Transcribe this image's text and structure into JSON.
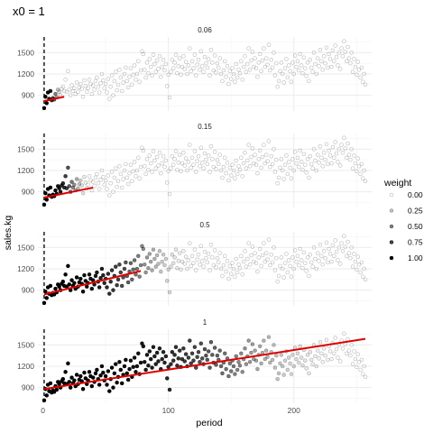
{
  "chart_data": {
    "type": "scatter",
    "title": "x0 =  1",
    "xlabel": "period",
    "ylabel": "sales.kg",
    "x_ticks": [
      0,
      100,
      200
    ],
    "y_ticks": [
      900,
      1200,
      1500
    ],
    "xlim": [
      -4,
      262
    ],
    "ylim": [
      680,
      1720
    ],
    "vline_x": 1,
    "grid": true,
    "legend": {
      "title": "weight",
      "position": "right",
      "entries": [
        {
          "label": "0.00",
          "value": 0.0
        },
        {
          "label": "0.25",
          "value": 0.25
        },
        {
          "label": "0.50",
          "value": 0.5
        },
        {
          "label": "0.75",
          "value": 0.75
        },
        {
          "label": "1.00",
          "value": 1.0
        }
      ]
    },
    "colors": {
      "points": "#000000",
      "fit_line": "#dd0000",
      "vline": "#000000"
    },
    "panels": [
      {
        "label": "0.06",
        "span": 0.06,
        "fit": {
          "x": [
            1,
            17
          ],
          "y": [
            820,
            880
          ]
        }
      },
      {
        "label": "0.15",
        "span": 0.15,
        "fit": {
          "x": [
            1,
            40
          ],
          "y": [
            820,
            960
          ]
        }
      },
      {
        "label": "0.5",
        "span": 0.5,
        "fit": {
          "x": [
            1,
            78
          ],
          "y": [
            840,
            1170
          ]
        }
      },
      {
        "label": "1",
        "span": 1.0,
        "fit": {
          "x": [
            1,
            257
          ],
          "y": [
            880,
            1585
          ]
        }
      }
    ],
    "series": [
      {
        "name": "sales.kg",
        "x": [
          1,
          2,
          3,
          4,
          5,
          6,
          7,
          8,
          9,
          10,
          11,
          12,
          13,
          14,
          15,
          16,
          17,
          18,
          19,
          20,
          21,
          22,
          23,
          24,
          25,
          26,
          27,
          28,
          29,
          30,
          31,
          32,
          33,
          34,
          35,
          36,
          37,
          38,
          39,
          40,
          41,
          42,
          43,
          44,
          45,
          46,
          47,
          48,
          49,
          50,
          51,
          52,
          53,
          54,
          55,
          56,
          57,
          58,
          59,
          60,
          61,
          62,
          63,
          64,
          65,
          66,
          67,
          68,
          69,
          70,
          71,
          72,
          73,
          74,
          75,
          76,
          77,
          78,
          79,
          80,
          81,
          82,
          83,
          84,
          85,
          86,
          87,
          88,
          89,
          90,
          91,
          92,
          93,
          94,
          95,
          96,
          97,
          98,
          99,
          100,
          101,
          102,
          103,
          104,
          105,
          106,
          107,
          108,
          109,
          110,
          111,
          112,
          113,
          114,
          115,
          116,
          117,
          118,
          119,
          120,
          121,
          122,
          123,
          124,
          125,
          126,
          127,
          128,
          129,
          130,
          131,
          132,
          133,
          134,
          135,
          136,
          137,
          138,
          139,
          140,
          141,
          142,
          143,
          144,
          145,
          146,
          147,
          148,
          149,
          150,
          151,
          152,
          153,
          154,
          155,
          156,
          157,
          158,
          159,
          160,
          161,
          162,
          163,
          164,
          165,
          166,
          167,
          168,
          169,
          170,
          171,
          172,
          173,
          174,
          175,
          176,
          177,
          178,
          179,
          180,
          181,
          182,
          183,
          184,
          185,
          186,
          187,
          188,
          189,
          190,
          191,
          192,
          193,
          194,
          195,
          196,
          197,
          198,
          199,
          200,
          201,
          202,
          203,
          204,
          205,
          206,
          207,
          208,
          209,
          210,
          211,
          212,
          213,
          214,
          215,
          216,
          217,
          218,
          219,
          220,
          221,
          222,
          223,
          224,
          225,
          226,
          227,
          228,
          229,
          230,
          231,
          232,
          233,
          234,
          235,
          236,
          237,
          238,
          239,
          240,
          241,
          242,
          243,
          244,
          245,
          246,
          247,
          248,
          249,
          250,
          251,
          252,
          253,
          254,
          255,
          256,
          257
        ],
        "y": [
          720,
          880,
          790,
          940,
          850,
          960,
          830,
          860,
          840,
          920,
          870,
          980,
          950,
          900,
          990,
          1020,
          960,
          1120,
          950,
          1240,
          980,
          900,
          1040,
          960,
          1000,
          920,
          1080,
          950,
          1010,
          1060,
          990,
          880,
          1110,
          1030,
          950,
          1000,
          1120,
          1060,
          920,
          1040,
          980,
          1100,
          1150,
          1020,
          940,
          1070,
          1200,
          1110,
          1000,
          1060,
          940,
          1130,
          850,
          1020,
          1180,
          900,
          1100,
          1230,
          970,
          1050,
          1260,
          1150,
          960,
          1080,
          1200,
          1290,
          1100,
          1010,
          1160,
          1280,
          1050,
          1190,
          1320,
          1120,
          1200,
          1380,
          1090,
          1250,
          1520,
          1480,
          1260,
          1150,
          1360,
          1210,
          1410,
          1300,
          1180,
          1470,
          1340,
          1230,
          1390,
          1270,
          1450,
          1160,
          1300,
          1400,
          1250,
          1340,
          1030,
          1190,
          870,
          1230,
          1400,
          1280,
          1360,
          1470,
          1210,
          1310,
          1420,
          1190,
          1300,
          1450,
          1270,
          1370,
          1200,
          1320,
          1560,
          1240,
          1380,
          1280,
          1470,
          1180,
          1330,
          1400,
          1260,
          1520,
          1310,
          1230,
          1440,
          1350,
          1290,
          1410,
          1180,
          1540,
          1360,
          1250,
          1460,
          1220,
          1350,
          1290,
          1420,
          1200,
          1100,
          1250,
          1380,
          1160,
          1310,
          1060,
          1240,
          1130,
          1280,
          1200,
          1090,
          1340,
          1150,
          1260,
          1210,
          1380,
          1120,
          1300,
          1450,
          1230,
          1340,
          1560,
          1260,
          1390,
          1510,
          1300,
          1420,
          1280,
          1160,
          1360,
          1480,
          1240,
          1390,
          1560,
          1300,
          1420,
          1330,
          1610,
          1250,
          1400,
          1290,
          1500,
          1180,
          1350,
          1020,
          1100,
          1240,
          1360,
          1200,
          1080,
          1280,
          1410,
          1150,
          1320,
          1240,
          1090,
          1360,
          1200,
          1460,
          1300,
          1380,
          1250,
          1480,
          1320,
          1210,
          1430,
          1280,
          1170,
          1360,
          1100,
          1400,
          1290,
          1230,
          1500,
          1340,
          1200,
          1420,
          1310,
          1540,
          1380,
          1260,
          1450,
          1350,
          1570,
          1290,
          1480,
          1410,
          1300,
          1530,
          1380,
          1600,
          1440,
          1320,
          1500,
          1270,
          1560,
          1450,
          1660,
          1510,
          1380,
          1580,
          1420,
          1350,
          1500,
          1230,
          1410,
          1300,
          1190,
          1370,
          1260,
          1150,
          1290,
          1090,
          1200,
          1050
        ]
      }
    ]
  }
}
